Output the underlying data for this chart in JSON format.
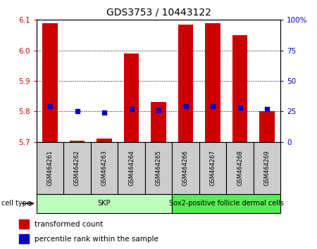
{
  "title": "GDS3753 / 10443122",
  "samples": [
    "GSM464261",
    "GSM464262",
    "GSM464263",
    "GSM464264",
    "GSM464265",
    "GSM464266",
    "GSM464267",
    "GSM464268",
    "GSM464269"
  ],
  "transformed_count": [
    6.09,
    5.705,
    5.71,
    5.99,
    5.83,
    6.085,
    6.09,
    6.05,
    5.8
  ],
  "percentile_rank": [
    29,
    25,
    24,
    27,
    26,
    29,
    29,
    28,
    27
  ],
  "cell_types": [
    {
      "label": "SKP",
      "start": 0,
      "end": 4,
      "color": "#bbffbb"
    },
    {
      "label": "Sox2-positive follicle dermal cells",
      "start": 5,
      "end": 8,
      "color": "#55ee55"
    }
  ],
  "ylim_left": [
    5.7,
    6.1
  ],
  "ylim_right": [
    0,
    100
  ],
  "yticks_left": [
    5.7,
    5.8,
    5.9,
    6.0,
    6.1
  ],
  "yticks_right": [
    0,
    25,
    50,
    75,
    100
  ],
  "bar_color": "#cc0000",
  "dot_color": "#0000cc",
  "bar_bottom": 5.7,
  "bar_width": 0.55,
  "background_color": "#ffffff",
  "tick_label_color_left": "#cc0000",
  "tick_label_color_right": "#0000cc",
  "cell_type_label": "cell type",
  "legend_items": [
    {
      "color": "#cc0000",
      "label": "transformed count"
    },
    {
      "color": "#0000cc",
      "label": "percentile rank within the sample"
    }
  ]
}
